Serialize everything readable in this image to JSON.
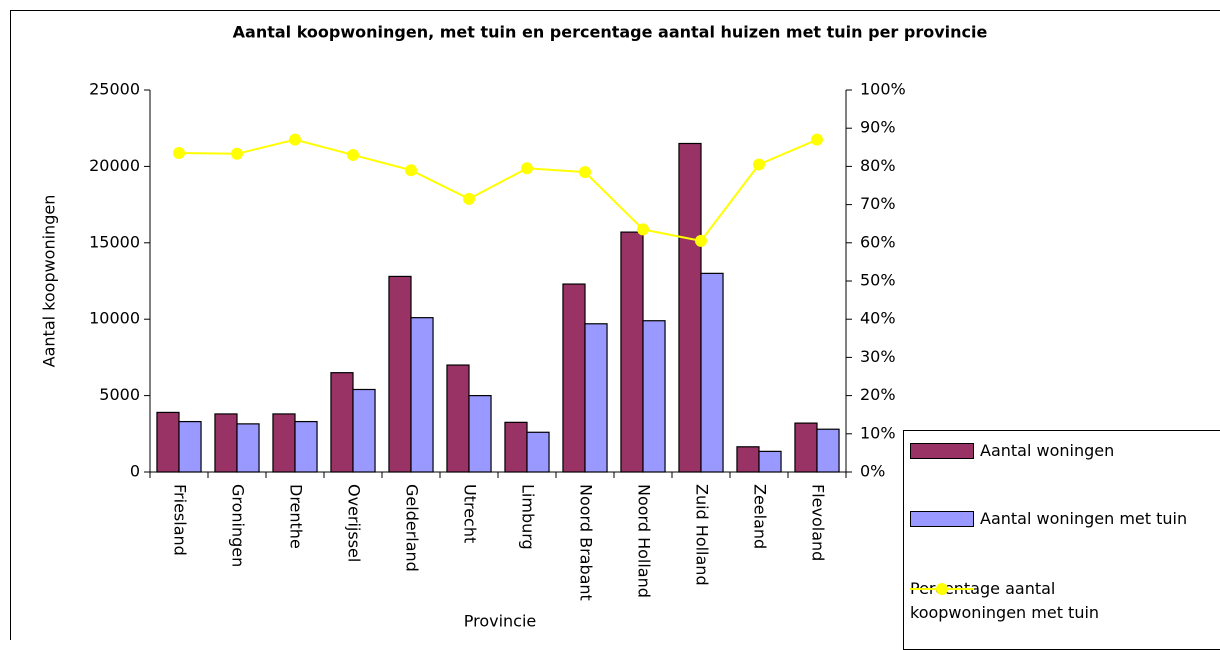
{
  "chart_data": {
    "type": "bar_line",
    "title": "Aantal koopwoningen, met tuin en percentage aantal huizen met tuin per provincie",
    "x_label": "Provincie",
    "y_label": "Aantal koopwoningen",
    "categories": [
      "Friesland",
      "Groningen",
      "Drenthe",
      "Overijssel",
      "Gelderland",
      "Utrecht",
      "Limburg",
      "Noord Brabant",
      "Noord Holland",
      "Zuid Holland",
      "Zeeland",
      "Flevoland"
    ],
    "series": [
      {
        "name": "Aantal woningen",
        "color": "#993366",
        "type": "bar",
        "values": [
          3900,
          3800,
          3800,
          6500,
          12800,
          7000,
          3250,
          12300,
          15700,
          21500,
          1650,
          3200
        ]
      },
      {
        "name": "Aantal woningen met tuin",
        "color": "#9999ff",
        "type": "bar",
        "values": [
          3300,
          3150,
          3300,
          5400,
          10100,
          5000,
          2600,
          9700,
          9900,
          13000,
          1350,
          2800
        ]
      },
      {
        "name": "Percentage aantal koopwoningen met tuin",
        "color": "#ffff00",
        "type": "line",
        "axis": "y2",
        "values": [
          83.5,
          83.3,
          87,
          83,
          79,
          71.5,
          79.5,
          78.5,
          63.5,
          60.5,
          80.5,
          87
        ]
      }
    ],
    "ylim": [
      0,
      25000
    ],
    "yticks": [
      0,
      5000,
      10000,
      15000,
      20000,
      25000
    ],
    "y2lim": [
      0,
      100
    ],
    "y2ticks": [
      {
        "value": 0,
        "label": "0%"
      },
      {
        "value": 10,
        "label": "10%"
      },
      {
        "value": 20,
        "label": "20%"
      },
      {
        "value": 30,
        "label": "30%"
      },
      {
        "value": 40,
        "label": "40%"
      },
      {
        "value": 50,
        "label": "50%"
      },
      {
        "value": 60,
        "label": "60%"
      },
      {
        "value": 70,
        "label": "70%"
      },
      {
        "value": 80,
        "label": "80%"
      },
      {
        "value": 90,
        "label": "90%"
      },
      {
        "value": 100,
        "label": "100%"
      }
    ],
    "legend": "bottom-right"
  }
}
